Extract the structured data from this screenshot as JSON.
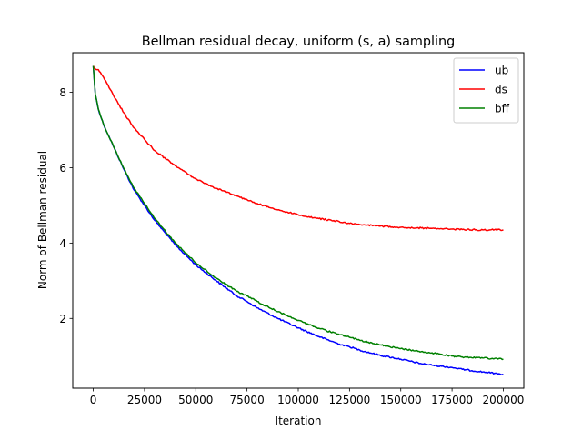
{
  "chart_data": {
    "type": "line",
    "title": "Bellman residual decay, uniform (s, a) sampling",
    "xlabel": "Iteration",
    "ylabel": "Norm of Bellman residual",
    "xlim": [
      -10000,
      210000
    ],
    "ylim": [
      0.15,
      9.05
    ],
    "xticks": [
      0,
      25000,
      50000,
      75000,
      100000,
      125000,
      150000,
      175000,
      200000
    ],
    "xtick_labels": [
      "0",
      "25000",
      "50000",
      "75000",
      "100000",
      "125000",
      "150000",
      "175000",
      "200000"
    ],
    "yticks": [
      2,
      4,
      6,
      8
    ],
    "ytick_labels": [
      "2",
      "4",
      "6",
      "8"
    ],
    "grid": false,
    "legend_position": "top-right",
    "series": [
      {
        "name": "ub",
        "color": "#0000ff",
        "x": [
          0,
          1000,
          2500,
          5000,
          10000,
          15000,
          20000,
          25000,
          30000,
          40000,
          50000,
          60000,
          70000,
          75000,
          80000,
          90000,
          100000,
          110000,
          120000,
          125000,
          130000,
          140000,
          150000,
          160000,
          170000,
          175000,
          180000,
          190000,
          200000
        ],
        "y": [
          8.7,
          7.95,
          7.55,
          7.15,
          6.55,
          5.95,
          5.4,
          5.0,
          4.6,
          3.95,
          3.42,
          3.0,
          2.6,
          2.45,
          2.28,
          2.0,
          1.75,
          1.52,
          1.32,
          1.25,
          1.16,
          1.02,
          0.92,
          0.8,
          0.73,
          0.7,
          0.65,
          0.58,
          0.52
        ]
      },
      {
        "name": "ds",
        "color": "#ff0000",
        "x": [
          0,
          1000,
          2500,
          5000,
          10000,
          15000,
          20000,
          25000,
          30000,
          40000,
          50000,
          60000,
          70000,
          75000,
          80000,
          90000,
          100000,
          110000,
          120000,
          125000,
          130000,
          140000,
          150000,
          160000,
          170000,
          175000,
          180000,
          190000,
          200000
        ],
        "y": [
          8.7,
          8.62,
          8.6,
          8.4,
          7.9,
          7.45,
          7.05,
          6.75,
          6.45,
          6.05,
          5.7,
          5.45,
          5.25,
          5.15,
          5.05,
          4.88,
          4.75,
          4.65,
          4.57,
          4.52,
          4.49,
          4.45,
          4.42,
          4.4,
          4.38,
          4.37,
          4.36,
          4.35,
          4.35
        ]
      },
      {
        "name": "bff",
        "color": "#008000",
        "x": [
          0,
          1000,
          2500,
          5000,
          10000,
          15000,
          20000,
          25000,
          30000,
          40000,
          50000,
          60000,
          70000,
          75000,
          80000,
          90000,
          100000,
          110000,
          120000,
          125000,
          130000,
          140000,
          150000,
          160000,
          170000,
          175000,
          180000,
          190000,
          200000
        ],
        "y": [
          8.7,
          7.95,
          7.55,
          7.15,
          6.55,
          5.97,
          5.45,
          5.05,
          4.65,
          4.0,
          3.48,
          3.07,
          2.72,
          2.6,
          2.45,
          2.18,
          1.95,
          1.74,
          1.57,
          1.5,
          1.42,
          1.3,
          1.2,
          1.12,
          1.05,
          1.0,
          0.98,
          0.95,
          0.92
        ]
      }
    ]
  }
}
